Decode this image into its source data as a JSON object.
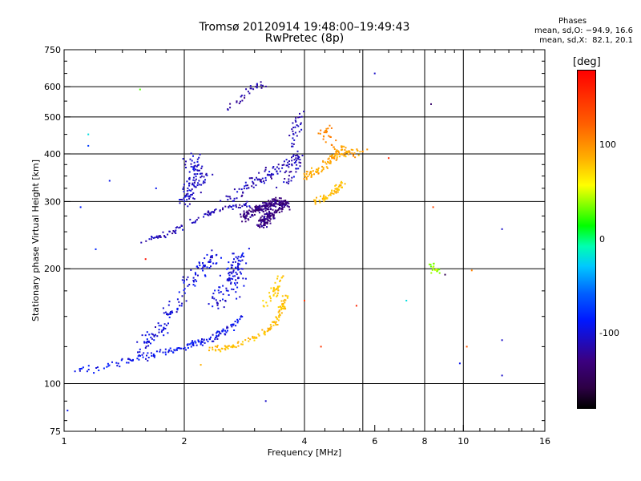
{
  "chart_data": {
    "type": "scatter",
    "title": "Tromsø 20120914 19:48:00–19:49:43",
    "subtitle": "RwPretec (8p)",
    "xlabel": "Frequency [MHz]",
    "ylabel": "Stationary phase Virtual Height [km]",
    "xscale": "log",
    "yscale": "log",
    "xlim": [
      1,
      16
    ],
    "ylim": [
      75,
      750
    ],
    "xticks": [
      1,
      2,
      4,
      6,
      8,
      10,
      16
    ],
    "xtick_labels": [
      "1",
      "2",
      "4",
      "6",
      "8",
      "10",
      "16"
    ],
    "xgrid": [
      2,
      4,
      5.6,
      8,
      10
    ],
    "yticks": [
      75,
      100,
      200,
      300,
      400,
      500,
      600,
      750
    ],
    "ytick_labels": [
      "75",
      "100",
      "200",
      "300",
      "400",
      "500",
      "600",
      "750"
    ],
    "ygrid": [
      100,
      200,
      300,
      400,
      500,
      600
    ],
    "grid": true,
    "phase_stats": {
      "header": "Phases",
      "line1": "mean, sd,O: −94.9, 16.6",
      "line2": "mean, sd,X:  82.1, 20.1"
    },
    "colorbar": {
      "unit": "deg",
      "range": [
        -180,
        180
      ],
      "ticks": [
        {
          "value": 100,
          "label": "100"
        },
        {
          "value": 0,
          "label": "0"
        },
        {
          "value": -100,
          "label": "-100"
        }
      ]
    },
    "clusters": [
      {
        "name": "",
        "phase": -100,
        "trace": [
          [
            1.05,
            108
          ],
          [
            1.2,
            109
          ],
          [
            1.4,
            114
          ],
          [
            1.6,
            118
          ],
          [
            1.8,
            121
          ],
          [
            2.0,
            125
          ],
          [
            2.2,
            128
          ],
          [
            2.4,
            133
          ],
          [
            2.6,
            140
          ],
          [
            2.8,
            150
          ]
        ],
        "spread": 0.06,
        "n": 160
      },
      {
        "name": "",
        "phase": -105,
        "trace": [
          [
            1.5,
            118
          ],
          [
            1.7,
            135
          ],
          [
            1.9,
            160
          ],
          [
            2.05,
            185
          ],
          [
            2.2,
            200
          ],
          [
            2.4,
            215
          ]
        ],
        "spread": 0.12,
        "n": 140
      },
      {
        "name": "",
        "phase": -110,
        "trace": [
          [
            2.0,
            300
          ],
          [
            2.1,
            330
          ],
          [
            2.2,
            360
          ],
          [
            2.05,
            390
          ]
        ],
        "spread": 0.14,
        "n": 110
      },
      {
        "name": "",
        "phase": -115,
        "trace": [
          [
            1.5,
            235
          ],
          [
            1.8,
            245
          ],
          [
            2.0,
            260
          ],
          [
            2.3,
            280
          ],
          [
            2.6,
            290
          ],
          [
            2.9,
            295
          ]
        ],
        "spread": 0.05,
        "n": 90
      },
      {
        "name": "",
        "phase": -105,
        "trace": [
          [
            2.4,
            160
          ],
          [
            2.55,
            180
          ],
          [
            2.7,
            200
          ],
          [
            2.8,
            220
          ],
          [
            2.65,
            170
          ]
        ],
        "spread": 0.13,
        "n": 110
      },
      {
        "name": "",
        "phase": -130,
        "trace": [
          [
            2.8,
            270
          ],
          [
            3.0,
            285
          ],
          [
            3.2,
            290
          ],
          [
            3.4,
            300
          ],
          [
            3.6,
            295
          ],
          [
            3.1,
            260
          ],
          [
            3.3,
            280
          ]
        ],
        "spread": 0.08,
        "n": 320
      },
      {
        "name": "",
        "phase": -115,
        "trace": [
          [
            2.5,
            300
          ],
          [
            2.9,
            330
          ],
          [
            3.2,
            350
          ],
          [
            3.6,
            370
          ],
          [
            3.9,
            400
          ],
          [
            3.5,
            320
          ]
        ],
        "spread": 0.1,
        "n": 130
      },
      {
        "name": "",
        "phase": -120,
        "trace": [
          [
            2.5,
            520
          ],
          [
            2.8,
            560
          ],
          [
            3.0,
            600
          ],
          [
            3.2,
            620
          ]
        ],
        "spread": 0.08,
        "n": 30
      },
      {
        "name": "",
        "phase": -115,
        "trace": [
          [
            3.7,
            420
          ],
          [
            3.8,
            470
          ],
          [
            3.9,
            510
          ]
        ],
        "spread": 0.06,
        "n": 30
      },
      {
        "name": "",
        "phase": 85,
        "trace": [
          [
            2.3,
            122
          ],
          [
            2.6,
            125
          ],
          [
            2.9,
            130
          ],
          [
            3.2,
            137
          ],
          [
            3.4,
            145
          ],
          [
            3.5,
            158
          ],
          [
            3.6,
            170
          ]
        ],
        "spread": 0.05,
        "n": 120
      },
      {
        "name": "",
        "phase": 80,
        "trace": [
          [
            3.2,
            160
          ],
          [
            3.4,
            175
          ],
          [
            3.5,
            190
          ],
          [
            3.3,
            170
          ]
        ],
        "spread": 0.07,
        "n": 40
      },
      {
        "name": "",
        "phase": 95,
        "trace": [
          [
            4.0,
            350
          ],
          [
            4.3,
            360
          ],
          [
            4.6,
            380
          ],
          [
            4.9,
            410
          ],
          [
            5.2,
            400
          ],
          [
            5.6,
            410
          ]
        ],
        "spread": 0.08,
        "n": 120
      },
      {
        "name": "",
        "phase": 85,
        "trace": [
          [
            4.2,
            300
          ],
          [
            4.5,
            305
          ],
          [
            4.8,
            320
          ],
          [
            5.0,
            340
          ]
        ],
        "spread": 0.05,
        "n": 60
      },
      {
        "name": "",
        "phase": 110,
        "trace": [
          [
            4.4,
            440
          ],
          [
            4.6,
            470
          ],
          [
            4.8,
            400
          ]
        ],
        "spread": 0.08,
        "n": 25
      },
      {
        "name": "",
        "phase": 40,
        "trace": [
          [
            8.2,
            210
          ],
          [
            8.5,
            200
          ],
          [
            8.8,
            195
          ]
        ],
        "spread": 0.06,
        "n": 18
      }
    ],
    "isolated_points": [
      {
        "x": 1.02,
        "y": 85,
        "phase": -100
      },
      {
        "x": 1.15,
        "y": 450,
        "phase": -20
      },
      {
        "x": 1.15,
        "y": 420,
        "phase": -80
      },
      {
        "x": 1.1,
        "y": 290,
        "phase": -95
      },
      {
        "x": 1.2,
        "y": 225,
        "phase": -90
      },
      {
        "x": 1.3,
        "y": 340,
        "phase": -100
      },
      {
        "x": 1.55,
        "y": 590,
        "phase": 30
      },
      {
        "x": 1.6,
        "y": 212,
        "phase": 170
      },
      {
        "x": 1.7,
        "y": 325,
        "phase": -100
      },
      {
        "x": 3.2,
        "y": 90,
        "phase": -110
      },
      {
        "x": 5.4,
        "y": 160,
        "phase": 160
      },
      {
        "x": 6.5,
        "y": 390,
        "phase": 160
      },
      {
        "x": 8.3,
        "y": 540,
        "phase": -140
      },
      {
        "x": 7.2,
        "y": 165,
        "phase": -20
      },
      {
        "x": 8.4,
        "y": 290,
        "phase": 140
      },
      {
        "x": 9.0,
        "y": 193,
        "phase": -150
      },
      {
        "x": 10.5,
        "y": 198,
        "phase": 110
      },
      {
        "x": 9.8,
        "y": 113,
        "phase": -100
      },
      {
        "x": 10.2,
        "y": 125,
        "phase": 130
      },
      {
        "x": 12.5,
        "y": 254,
        "phase": -110
      },
      {
        "x": 12.5,
        "y": 130,
        "phase": -110
      },
      {
        "x": 12.5,
        "y": 105,
        "phase": -110
      },
      {
        "x": 6.0,
        "y": 650,
        "phase": -110
      },
      {
        "x": 4.0,
        "y": 165,
        "phase": 150
      },
      {
        "x": 2.2,
        "y": 112,
        "phase": 90
      },
      {
        "x": 4.4,
        "y": 125,
        "phase": 150
      }
    ]
  }
}
